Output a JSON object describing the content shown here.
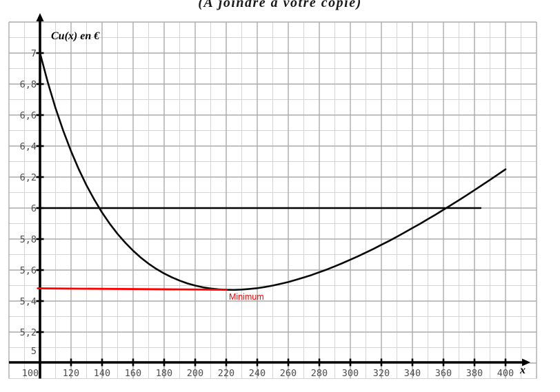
{
  "figure": {
    "title": "(À joindre à votre copie)",
    "y_axis_title": "Cu(x) en €",
    "x_axis_label": "x",
    "background": "#ffffff"
  },
  "colors": {
    "curve": "#0a0a0a",
    "axis": "#000000",
    "grid_major": "#ababab",
    "grid_minor": "#d4d4d4",
    "tick_label": "#4d4d4d",
    "reference_line": "#000000",
    "minimum_line": "#fe0000",
    "minimum_text": "#fe0000"
  },
  "chart_data": {
    "type": "line",
    "title": "(À joindre à votre copie)",
    "xlabel": "x",
    "ylabel": "Cu(x) en €",
    "xlim": [
      100,
      400
    ],
    "ylim": [
      5,
      7
    ],
    "grid": true,
    "minor_step_x": 10,
    "minor_step_y": 0.1,
    "x_ticks": [
      100,
      120,
      140,
      160,
      180,
      200,
      220,
      240,
      260,
      280,
      300,
      320,
      340,
      360,
      380,
      400
    ],
    "x_tick_labels": [
      "100",
      "120",
      "140",
      "160",
      "180",
      "200",
      "220",
      "240",
      "260",
      "280",
      "300",
      "320",
      "340",
      "360",
      "380",
      "400"
    ],
    "y_ticks": [
      5,
      5.2,
      5.4,
      5.6,
      5.8,
      6,
      6.2,
      6.4,
      6.6,
      6.8,
      7
    ],
    "y_tick_labels": [
      "5",
      "5,2",
      "5,4",
      "5,6",
      "5,8",
      "6",
      "6,2",
      "6,4",
      "6,6",
      "6,8",
      "7"
    ],
    "minimum": {
      "x": 223.6,
      "y": 5.47,
      "label": "Minimum"
    },
    "series": [
      {
        "name": "average-cost-curve",
        "label": "Cu(x) en €",
        "color_key": "curve",
        "width": 2.6,
        "points": [
          [
            100,
            7.0
          ],
          [
            105,
            6.812
          ],
          [
            110,
            6.645
          ],
          [
            115,
            6.498
          ],
          [
            120,
            6.367
          ],
          [
            125,
            6.25
          ],
          [
            130,
            6.146
          ],
          [
            135,
            6.054
          ],
          [
            140,
            5.971
          ],
          [
            145,
            5.898
          ],
          [
            150,
            5.833
          ],
          [
            155,
            5.776
          ],
          [
            160,
            5.725
          ],
          [
            165,
            5.68
          ],
          [
            170,
            5.641
          ],
          [
            175,
            5.607
          ],
          [
            180,
            5.578
          ],
          [
            185,
            5.553
          ],
          [
            190,
            5.532
          ],
          [
            195,
            5.514
          ],
          [
            200,
            5.5
          ],
          [
            205,
            5.489
          ],
          [
            210,
            5.481
          ],
          [
            215,
            5.476
          ],
          [
            220,
            5.473
          ],
          [
            225,
            5.472
          ],
          [
            230,
            5.474
          ],
          [
            235,
            5.478
          ],
          [
            240,
            5.483
          ],
          [
            245,
            5.491
          ],
          [
            250,
            5.5
          ],
          [
            255,
            5.511
          ],
          [
            260,
            5.523
          ],
          [
            265,
            5.537
          ],
          [
            270,
            5.552
          ],
          [
            275,
            5.568
          ],
          [
            280,
            5.586
          ],
          [
            285,
            5.604
          ],
          [
            290,
            5.624
          ],
          [
            295,
            5.645
          ],
          [
            300,
            5.667
          ],
          [
            305,
            5.689
          ],
          [
            310,
            5.713
          ],
          [
            315,
            5.737
          ],
          [
            320,
            5.763
          ],
          [
            325,
            5.788
          ],
          [
            330,
            5.815
          ],
          [
            335,
            5.843
          ],
          [
            340,
            5.871
          ],
          [
            345,
            5.899
          ],
          [
            350,
            5.929
          ],
          [
            355,
            5.958
          ],
          [
            360,
            5.989
          ],
          [
            365,
            6.02
          ],
          [
            370,
            6.051
          ],
          [
            375,
            6.083
          ],
          [
            380,
            6.116
          ],
          [
            385,
            6.149
          ],
          [
            390,
            6.182
          ],
          [
            395,
            6.216
          ],
          [
            400,
            6.25
          ]
        ]
      },
      {
        "name": "horizontal-reference-line-y6",
        "label": "y = 6",
        "color_key": "reference_line",
        "width": 2.4,
        "points": [
          [
            100,
            6
          ],
          [
            384,
            6
          ]
        ]
      },
      {
        "name": "minimum-tangent-line",
        "label": "Minimum",
        "color_key": "minimum_line",
        "width": 2.8,
        "points": [
          [
            98.6,
            5.482
          ],
          [
            220,
            5.473
          ]
        ]
      }
    ]
  }
}
